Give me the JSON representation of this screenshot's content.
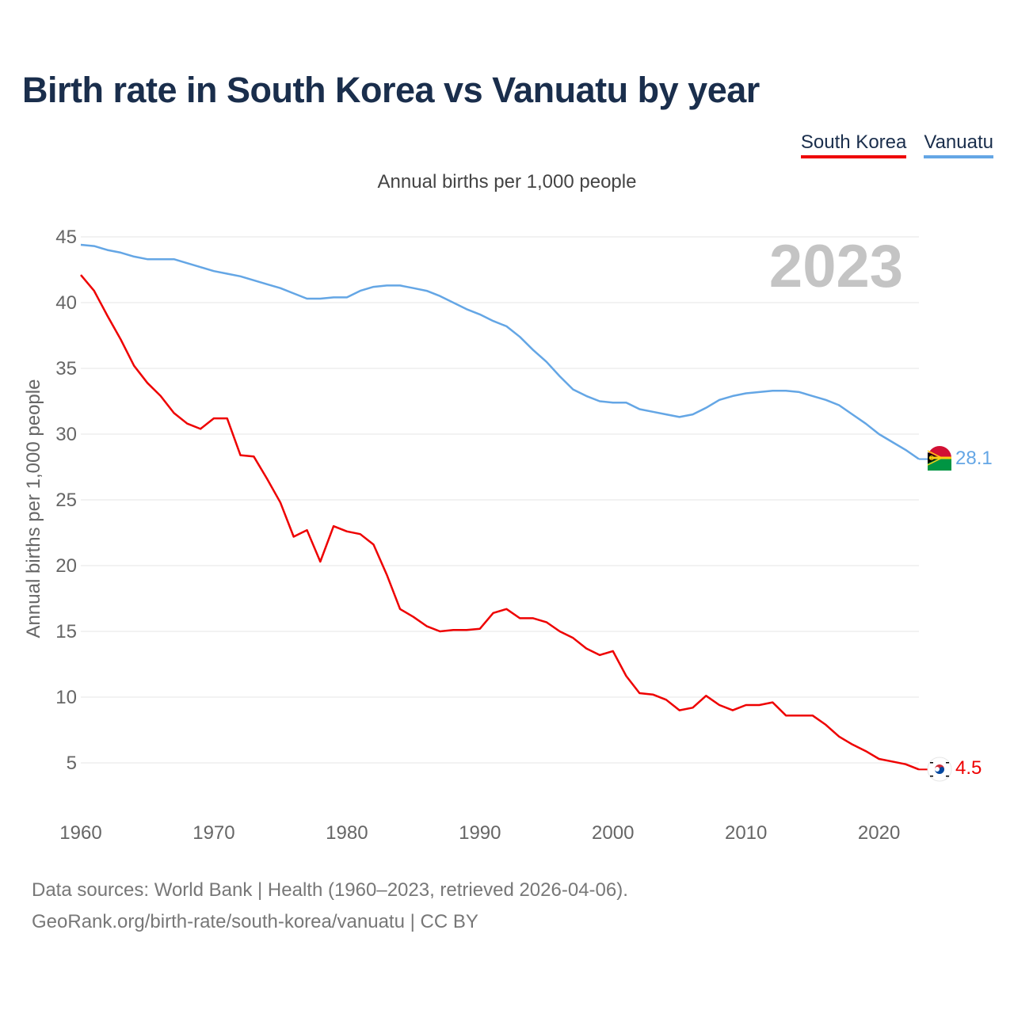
{
  "title": "Birth rate in South Korea vs Vanuatu by year",
  "subtitle": "Annual births per 1,000 people",
  "legend": [
    {
      "name": "South Korea",
      "color": "#ee0000"
    },
    {
      "name": "Vanuatu",
      "color": "#64a6e5"
    }
  ],
  "year_watermark": "2023",
  "footer": {
    "line1": "Data sources: World Bank | Health (1960–2023, retrieved 2026-04-06).",
    "line2": "GeoRank.org/birth-rate/south-korea/vanuatu | CC BY"
  },
  "chart_data": {
    "type": "line",
    "title": "Birth rate in South Korea vs Vanuatu by year",
    "xlabel": "",
    "ylabel": "Annual births per 1,000 people",
    "xlim": [
      1960,
      2023
    ],
    "ylim": [
      0,
      45
    ],
    "x_ticks": [
      1960,
      1970,
      1980,
      1990,
      2000,
      2010,
      2020
    ],
    "y_ticks": [
      5,
      10,
      15,
      20,
      25,
      30,
      35,
      40,
      45
    ],
    "grid": true,
    "x": [
      1960,
      1961,
      1962,
      1963,
      1964,
      1965,
      1966,
      1967,
      1968,
      1969,
      1970,
      1971,
      1972,
      1973,
      1974,
      1975,
      1976,
      1977,
      1978,
      1979,
      1980,
      1981,
      1982,
      1983,
      1984,
      1985,
      1986,
      1987,
      1988,
      1989,
      1990,
      1991,
      1992,
      1993,
      1994,
      1995,
      1996,
      1997,
      1998,
      1999,
      2000,
      2001,
      2002,
      2003,
      2004,
      2005,
      2006,
      2007,
      2008,
      2009,
      2010,
      2011,
      2012,
      2013,
      2014,
      2015,
      2016,
      2017,
      2018,
      2019,
      2020,
      2021,
      2022,
      2023
    ],
    "series": [
      {
        "name": "South Korea",
        "color": "#ee0000",
        "end_label": "4.5",
        "values": [
          42.1,
          40.9,
          39.0,
          37.2,
          35.2,
          33.9,
          32.9,
          31.6,
          30.8,
          30.4,
          31.2,
          31.2,
          28.4,
          28.3,
          26.6,
          24.8,
          22.2,
          22.7,
          20.3,
          23.0,
          22.6,
          22.4,
          21.6,
          19.3,
          16.7,
          16.1,
          15.4,
          15.0,
          15.1,
          15.1,
          15.2,
          16.4,
          16.7,
          16.0,
          16.0,
          15.7,
          15.0,
          14.5,
          13.7,
          13.2,
          13.5,
          11.6,
          10.3,
          10.2,
          9.8,
          9.0,
          9.2,
          10.1,
          9.4,
          9.0,
          9.4,
          9.4,
          9.6,
          8.6,
          8.6,
          8.6,
          7.9,
          7.0,
          6.4,
          5.9,
          5.3,
          5.1,
          4.9,
          4.5
        ]
      },
      {
        "name": "Vanuatu",
        "color": "#64a6e5",
        "end_label": "28.1",
        "values": [
          44.4,
          44.3,
          44.0,
          43.8,
          43.5,
          43.3,
          43.3,
          43.3,
          43.0,
          42.7,
          42.4,
          42.2,
          42.0,
          41.7,
          41.4,
          41.1,
          40.7,
          40.3,
          40.3,
          40.4,
          40.4,
          40.9,
          41.2,
          41.3,
          41.3,
          41.1,
          40.9,
          40.5,
          40.0,
          39.5,
          39.1,
          38.6,
          38.2,
          37.4,
          36.4,
          35.5,
          34.4,
          33.4,
          32.9,
          32.5,
          32.4,
          32.4,
          31.9,
          31.7,
          31.5,
          31.3,
          31.5,
          32.0,
          32.6,
          32.9,
          33.1,
          33.2,
          33.3,
          33.3,
          33.2,
          32.9,
          32.6,
          32.2,
          31.5,
          30.8,
          30.0,
          29.4,
          28.8,
          28.1
        ]
      }
    ]
  }
}
